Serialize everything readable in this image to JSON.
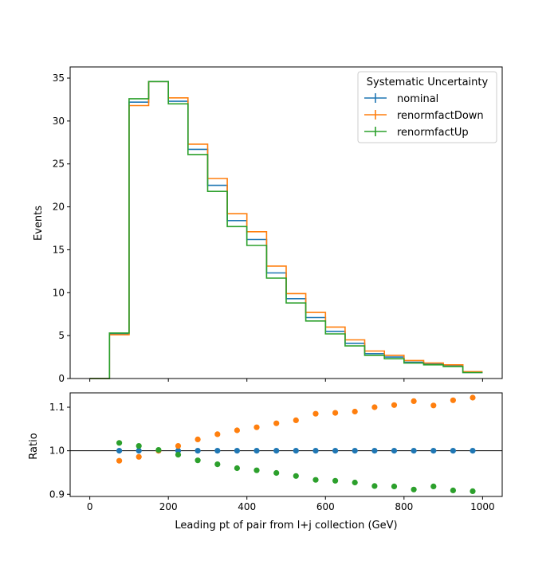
{
  "chart_data": [
    {
      "type": "step",
      "xlabel": "",
      "ylabel": "Events",
      "xlim": [
        -50,
        1050
      ],
      "ylim": [
        0,
        36.3
      ],
      "x_ticks": [
        "0",
        "200",
        "400",
        "600",
        "800",
        "1000"
      ],
      "y_ticks": [
        "0",
        "5",
        "10",
        "15",
        "20",
        "25",
        "30",
        "35"
      ],
      "bin_edges": [
        0,
        50,
        100,
        150,
        200,
        250,
        300,
        350,
        400,
        450,
        500,
        550,
        600,
        650,
        700,
        750,
        800,
        850,
        900,
        950,
        1000
      ],
      "legend": {
        "title": "Systematic Uncertainty",
        "position": "top-right"
      },
      "series": [
        {
          "name": "nominal",
          "color": "#1f77b4",
          "values": [
            0,
            5.2,
            32.2,
            34.6,
            32.3,
            26.7,
            22.5,
            18.4,
            16.2,
            12.3,
            9.3,
            7.1,
            5.5,
            4.1,
            2.9,
            2.5,
            1.9,
            1.7,
            1.5,
            0.7
          ]
        },
        {
          "name": "renormfactDown",
          "color": "#ff7f0e",
          "values": [
            0,
            5.1,
            31.8,
            34.6,
            32.7,
            27.3,
            23.3,
            19.2,
            17.1,
            13.1,
            9.9,
            7.7,
            6.0,
            4.5,
            3.2,
            2.7,
            2.1,
            1.8,
            1.6,
            0.8
          ]
        },
        {
          "name": "renormfactUp",
          "color": "#2ca02c",
          "values": [
            0,
            5.3,
            32.6,
            34.6,
            32.0,
            26.1,
            21.8,
            17.7,
            15.5,
            11.7,
            8.8,
            6.7,
            5.2,
            3.8,
            2.7,
            2.3,
            1.8,
            1.6,
            1.4,
            0.7
          ]
        }
      ]
    },
    {
      "type": "scatter",
      "xlabel": "Leading pt of pair from l+j collection (GeV)",
      "ylabel": "Ratio",
      "xlim": [
        -50,
        1050
      ],
      "ylim": [
        0.895,
        1.133
      ],
      "x_ticks": [
        "0",
        "200",
        "400",
        "600",
        "800",
        "1000"
      ],
      "y_ticks": [
        "0.9",
        "1.0",
        "1.1"
      ],
      "x": [
        75,
        125,
        175,
        225,
        275,
        325,
        375,
        425,
        475,
        525,
        575,
        625,
        675,
        725,
        775,
        825,
        875,
        925,
        975
      ],
      "reference_line": 1.0,
      "series": [
        {
          "name": "nominal",
          "color": "#1f77b4",
          "values": [
            1.0,
            1.0,
            1.0,
            1.0,
            1.0,
            1.0,
            1.0,
            1.0,
            1.0,
            1.0,
            1.0,
            1.0,
            1.0,
            1.0,
            1.0,
            1.0,
            1.0,
            1.0,
            1.0
          ]
        },
        {
          "name": "renormfactDown",
          "color": "#ff7f0e",
          "values": [
            0.977,
            0.986,
            1.0,
            1.011,
            1.026,
            1.038,
            1.047,
            1.054,
            1.063,
            1.07,
            1.085,
            1.087,
            1.09,
            1.1,
            1.105,
            1.114,
            1.104,
            1.116,
            1.122
          ]
        },
        {
          "name": "renormfactUp",
          "color": "#2ca02c",
          "values": [
            1.018,
            1.011,
            1.002,
            0.991,
            0.978,
            0.969,
            0.96,
            0.955,
            0.949,
            0.942,
            0.933,
            0.931,
            0.927,
            0.919,
            0.918,
            0.911,
            0.918,
            0.909,
            0.907
          ]
        }
      ]
    }
  ]
}
